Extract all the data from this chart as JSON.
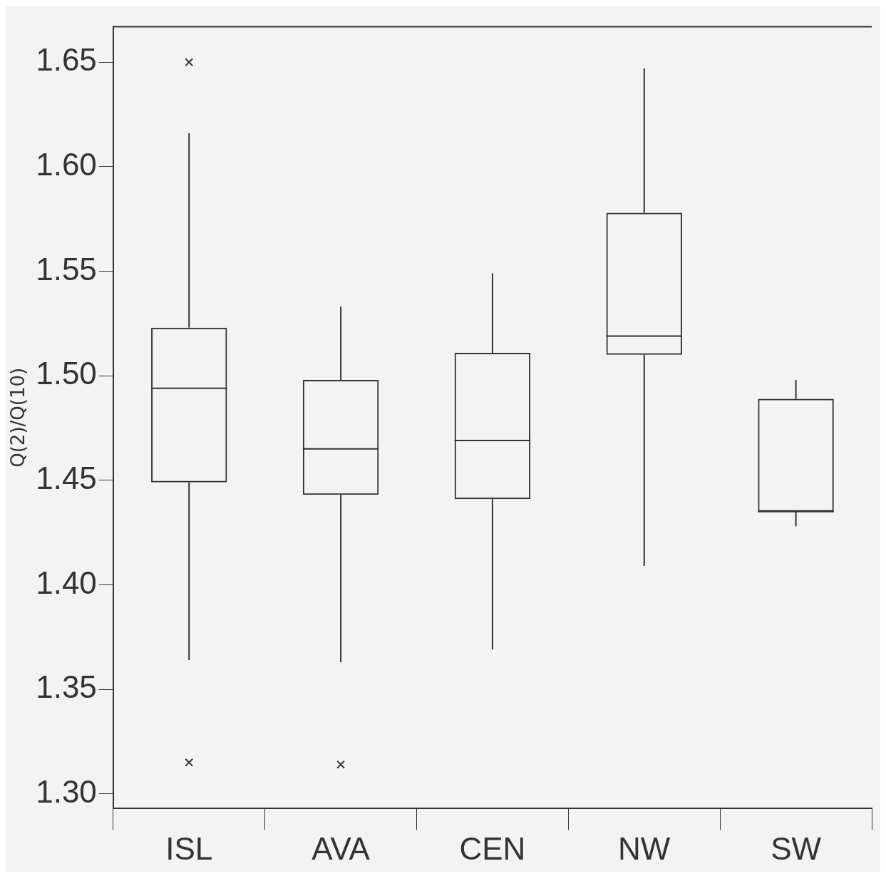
{
  "chart_data": {
    "type": "box",
    "ylabel": "Q(2)/Q(10)",
    "categories": [
      "ISL",
      "AVA",
      "CEN",
      "NW",
      "SW"
    ],
    "boxes": [
      {
        "low": 1.364,
        "q1": 1.449,
        "median": 1.494,
        "q3": 1.523,
        "high": 1.616,
        "outliers": [
          1.65,
          1.315
        ]
      },
      {
        "low": 1.363,
        "q1": 1.443,
        "median": 1.465,
        "q3": 1.498,
        "high": 1.533,
        "outliers": [
          1.314
        ]
      },
      {
        "low": 1.369,
        "q1": 1.441,
        "median": 1.469,
        "q3": 1.511,
        "high": 1.549
      },
      {
        "low": 1.409,
        "q1": 1.51,
        "median": 1.519,
        "q3": 1.578,
        "high": 1.647
      },
      {
        "low": 1.428,
        "q1": 1.435,
        "median": 1.435,
        "q3": 1.489,
        "high": 1.498
      }
    ],
    "color": "#333333",
    "ylim": [
      1.293,
      1.667
    ],
    "yticks": [
      {
        "value": 1.3,
        "label": "1.30"
      },
      {
        "value": 1.35,
        "label": "1.35"
      },
      {
        "value": 1.4,
        "label": "1.40"
      },
      {
        "value": 1.45,
        "label": "1.45"
      },
      {
        "value": 1.5,
        "label": "1.50"
      },
      {
        "value": 1.55,
        "label": "1.55"
      },
      {
        "value": 1.6,
        "label": "1.60"
      },
      {
        "value": 1.65,
        "label": "1.65"
      }
    ],
    "grid": false,
    "legend": false
  }
}
